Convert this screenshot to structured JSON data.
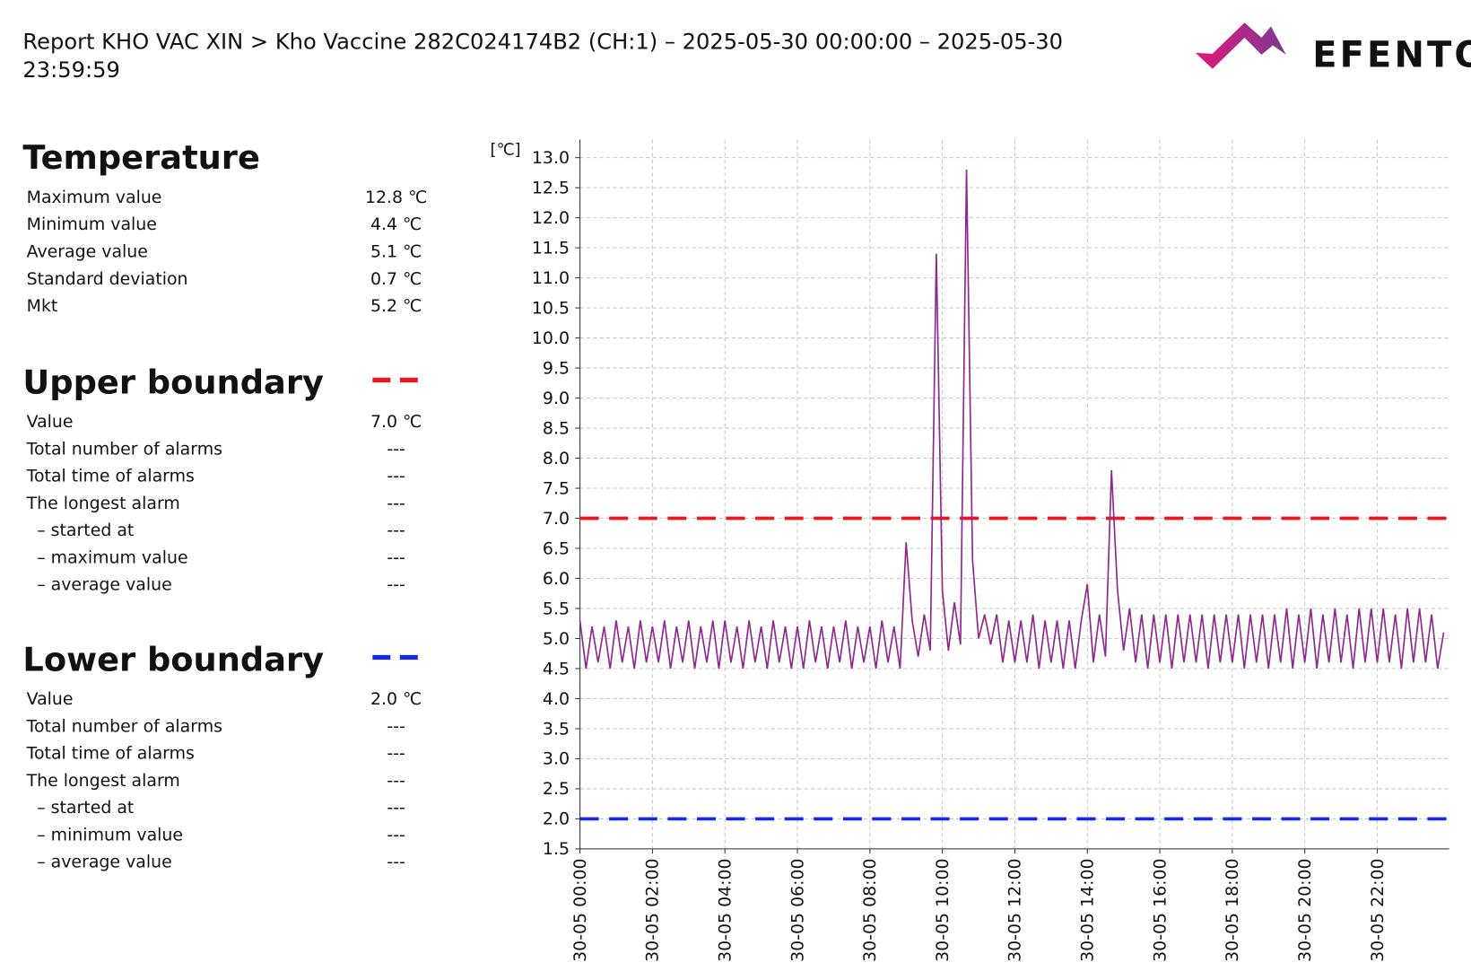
{
  "title_lines": [
    "Report KHO VAC XIN > Kho Vaccine 282C024174B2 (CH:1) – 2025-05-30 00:00:00 – 2025-05-30",
    "23:59:59"
  ],
  "logo": "EFENTO",
  "sections": [
    {
      "title": "Temperature",
      "rows": [
        [
          "Maximum value",
          "12.8 ℃"
        ],
        [
          "Minimum value",
          "4.4 ℃"
        ],
        [
          "Average value",
          "5.1 ℃"
        ],
        [
          "Standard deviation",
          "0.7 ℃"
        ],
        [
          "Mkt",
          "5.2 ℃"
        ]
      ]
    },
    {
      "title": "Upper boundary",
      "rows": [
        [
          "Value",
          "7.0 ℃"
        ],
        [
          "Total number of alarms",
          "---"
        ],
        [
          "Total time of alarms",
          "---"
        ],
        [
          "The longest alarm",
          "---"
        ],
        [
          "– started at",
          "---"
        ],
        [
          "– maximum value",
          "---"
        ],
        [
          "– average value",
          "---"
        ]
      ]
    },
    {
      "title": "Lower boundary",
      "rows": [
        [
          "Value",
          "2.0 ℃"
        ],
        [
          "Total number of alarms",
          "---"
        ],
        [
          "Total time of alarms",
          "---"
        ],
        [
          "The longest alarm",
          "---"
        ],
        [
          "– started at",
          "---"
        ],
        [
          "– minimum value",
          "---"
        ],
        [
          "– average value",
          "---"
        ]
      ]
    }
  ],
  "chart_data": {
    "type": "line",
    "y_unit": "[℃]",
    "color": "#8e2a8e",
    "upper_limit": 7.0,
    "upper_color": "#f0141e",
    "lower_limit": 2.0,
    "lower_color": "#1428f0",
    "grid": true,
    "xlim": [
      0,
      1439
    ],
    "xticks": [
      {
        "value": 0,
        "label": "30-05 00:00"
      },
      {
        "value": 120,
        "label": "30-05 02:00"
      },
      {
        "value": 240,
        "label": "30-05 04:00"
      },
      {
        "value": 360,
        "label": "30-05 06:00"
      },
      {
        "value": 480,
        "label": "30-05 08:00"
      },
      {
        "value": 600,
        "label": "30-05 10:00"
      },
      {
        "value": 720,
        "label": "30-05 12:00"
      },
      {
        "value": 840,
        "label": "30-05 14:00"
      },
      {
        "value": 960,
        "label": "30-05 16:00"
      },
      {
        "value": 1080,
        "label": "30-05 18:00"
      },
      {
        "value": 1200,
        "label": "30-05 20:00"
      },
      {
        "value": 1320,
        "label": "30-05 22:00"
      }
    ],
    "ylim": [
      1.5,
      13.3
    ],
    "yticks": [
      1.5,
      {
        "value": 2,
        "label": "2.0"
      },
      2.5,
      {
        "value": 3,
        "label": "3.0"
      },
      3.5,
      {
        "value": 4,
        "label": "4.0"
      },
      4.5,
      {
        "value": 5,
        "label": "5.0"
      },
      5.5,
      {
        "value": 6,
        "label": "6.0"
      },
      6.5,
      {
        "value": 7,
        "label": "7.0"
      },
      7.5,
      {
        "value": 8,
        "label": "8.0"
      },
      8.5,
      {
        "value": 9,
        "label": "9.0"
      },
      9.5,
      {
        "value": 10,
        "label": "10.0"
      },
      10.5,
      {
        "value": 11,
        "label": "11.0"
      },
      11.5,
      {
        "value": 12,
        "label": "12.0"
      },
      12.5,
      {
        "value": 13,
        "label": "13.0"
      }
    ],
    "x": [
      0,
      10,
      20,
      30,
      40,
      50,
      60,
      70,
      80,
      90,
      100,
      110,
      120,
      130,
      140,
      150,
      160,
      170,
      180,
      190,
      200,
      210,
      220,
      230,
      240,
      250,
      260,
      270,
      280,
      290,
      300,
      310,
      320,
      330,
      340,
      350,
      360,
      370,
      380,
      390,
      400,
      410,
      420,
      430,
      440,
      450,
      460,
      470,
      480,
      490,
      500,
      510,
      520,
      530,
      540,
      550,
      560,
      570,
      580,
      590,
      600,
      610,
      620,
      630,
      640,
      650,
      660,
      670,
      680,
      690,
      700,
      710,
      720,
      730,
      740,
      750,
      760,
      770,
      780,
      790,
      800,
      810,
      820,
      830,
      840,
      850,
      860,
      870,
      880,
      890,
      900,
      910,
      920,
      930,
      940,
      950,
      960,
      970,
      980,
      990,
      1000,
      1010,
      1020,
      1030,
      1040,
      1050,
      1060,
      1070,
      1080,
      1090,
      1100,
      1110,
      1120,
      1130,
      1140,
      1150,
      1160,
      1170,
      1180,
      1190,
      1200,
      1210,
      1220,
      1230,
      1240,
      1250,
      1260,
      1270,
      1280,
      1290,
      1300,
      1310,
      1320,
      1330,
      1340,
      1350,
      1360,
      1370,
      1380,
      1390,
      1400,
      1410,
      1420,
      1430
    ],
    "values": [
      5.3,
      4.5,
      5.2,
      4.6,
      5.2,
      4.5,
      5.3,
      4.6,
      5.2,
      4.5,
      5.3,
      4.6,
      5.2,
      4.6,
      5.3,
      4.5,
      5.2,
      4.6,
      5.3,
      4.5,
      5.2,
      4.6,
      5.3,
      4.5,
      5.3,
      4.6,
      5.2,
      4.5,
      5.3,
      4.6,
      5.2,
      4.5,
      5.3,
      4.6,
      5.2,
      4.5,
      5.2,
      4.5,
      5.3,
      4.6,
      5.2,
      4.5,
      5.2,
      4.6,
      5.3,
      4.5,
      5.2,
      4.6,
      5.2,
      4.5,
      5.3,
      4.6,
      5.2,
      4.5,
      6.6,
      5.3,
      4.7,
      5.4,
      4.8,
      11.4,
      5.8,
      4.8,
      5.6,
      4.9,
      12.8,
      6.3,
      5.0,
      5.4,
      4.9,
      5.4,
      4.6,
      5.3,
      4.6,
      5.3,
      4.6,
      5.4,
      4.5,
      5.3,
      4.6,
      5.3,
      4.5,
      5.3,
      4.5,
      5.3,
      5.9,
      4.6,
      5.4,
      4.7,
      7.8,
      5.8,
      4.8,
      5.5,
      4.6,
      5.4,
      4.5,
      5.4,
      4.6,
      5.4,
      4.5,
      5.4,
      4.6,
      5.4,
      4.6,
      5.4,
      4.5,
      5.4,
      4.6,
      5.4,
      4.6,
      5.4,
      4.5,
      5.4,
      4.6,
      5.4,
      4.5,
      5.4,
      4.6,
      5.5,
      4.5,
      5.4,
      4.6,
      5.5,
      4.5,
      5.4,
      4.6,
      5.5,
      4.6,
      5.4,
      4.5,
      5.5,
      4.6,
      5.5,
      4.6,
      5.5,
      4.6,
      5.4,
      4.5,
      5.5,
      4.6,
      5.5,
      4.6,
      5.4,
      4.5,
      5.1
    ]
  }
}
